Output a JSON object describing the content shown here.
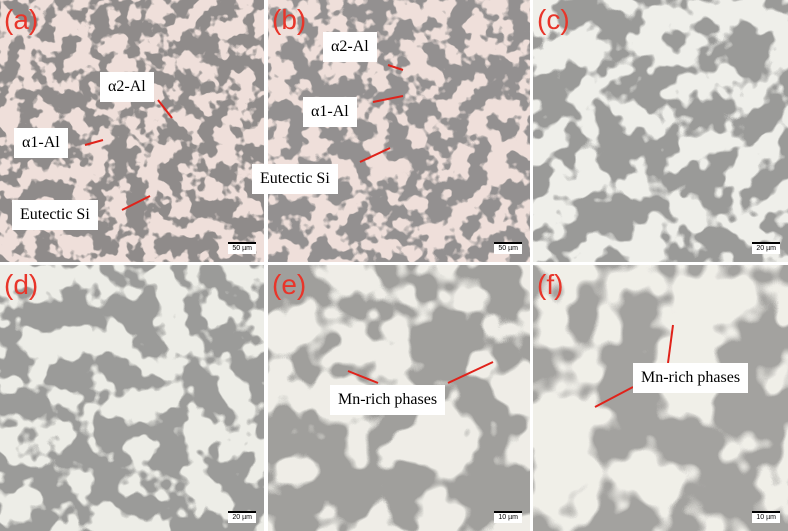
{
  "panels": [
    {
      "label": "(a)",
      "annotations": [
        "α2-Al",
        "α1-Al",
        "Eutectic Si"
      ],
      "scale_bar": "50 µm"
    },
    {
      "label": "(b)",
      "annotations": [
        "α2-Al",
        "α1-Al",
        "Eutectic Si"
      ],
      "scale_bar": "50 µm"
    },
    {
      "label": "(c)",
      "annotations": [],
      "scale_bar": "20 µm"
    },
    {
      "label": "(d)",
      "annotations": [],
      "scale_bar": "20 µm"
    },
    {
      "label": "(e)",
      "annotations": [
        "Mn-rich phases"
      ],
      "scale_bar": "10 µm"
    },
    {
      "label": "(f)",
      "annotations": [
        "Mn-rich phases"
      ],
      "scale_bar": "10 µm"
    }
  ]
}
